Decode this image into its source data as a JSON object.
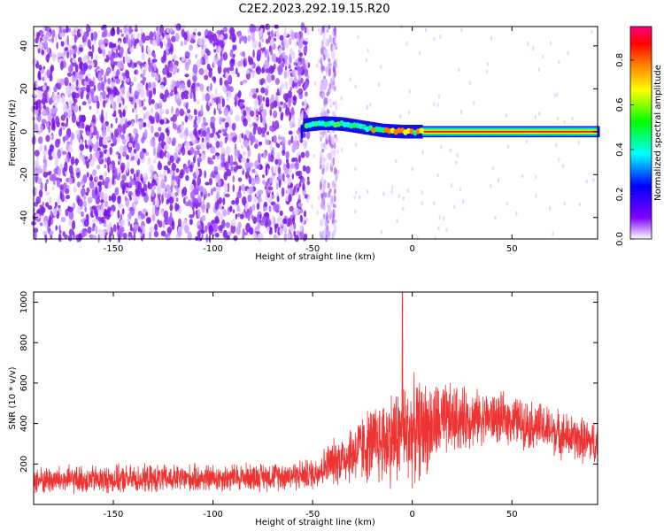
{
  "title": "C2E2.2023.292.19.15.R20",
  "chart_data": [
    {
      "type": "heatmap",
      "xlabel": "Height of straight line (km)",
      "ylabel": "Frequency (Hz)",
      "xlim": [
        -190,
        93
      ],
      "ylim": [
        -50,
        49
      ],
      "xticks": [
        -150,
        -100,
        -50,
        0,
        50
      ],
      "yticks": [
        -40,
        -20,
        0,
        20,
        40
      ],
      "colorbar": {
        "label": "Normalized spectral amplitude",
        "range": [
          0,
          0.95
        ],
        "ticks": [
          "0.0",
          "0.2",
          "0.4",
          "0.6",
          "0.8"
        ],
        "colors": [
          "#ffffff",
          "#8000ff",
          "#0000ff",
          "#00ffff",
          "#00ff00",
          "#ffff00",
          "#ff8000",
          "#ff0000",
          "#ff0080"
        ]
      },
      "ridge": {
        "description": "strong signal band near 0 Hz",
        "points": [
          [
            -55,
            3
          ],
          [
            -45,
            4
          ],
          [
            -35,
            3.5
          ],
          [
            -25,
            2
          ],
          [
            -15,
            0.5
          ],
          [
            -5,
            0
          ],
          [
            0,
            0
          ],
          [
            93,
            0
          ]
        ]
      }
    },
    {
      "type": "line",
      "xlabel": "Height of straight line (km)",
      "ylabel": "SNR (10 * v/v)",
      "xlim": [
        -190,
        93
      ],
      "ylim": [
        0,
        1050
      ],
      "xticks": [
        -150,
        -100,
        -50,
        0,
        50
      ],
      "yticks": [
        200,
        400,
        600,
        800,
        1000
      ],
      "series": [
        {
          "name": "SNR",
          "color": "#ee3333",
          "envelope_x": [
            -190,
            -140,
            -100,
            -70,
            -50,
            -42,
            -35,
            -25,
            -10,
            0,
            10,
            20,
            35,
            50,
            65,
            80,
            93
          ],
          "envelope_mean": [
            120,
            125,
            130,
            140,
            150,
            200,
            230,
            280,
            330,
            360,
            390,
            420,
            430,
            420,
            380,
            330,
            300
          ],
          "envelope_amp": [
            80,
            80,
            80,
            80,
            90,
            120,
            150,
            200,
            280,
            300,
            250,
            200,
            150,
            140,
            140,
            130,
            130
          ],
          "peak": {
            "x": -5,
            "y": 1050
          }
        }
      ]
    }
  ]
}
